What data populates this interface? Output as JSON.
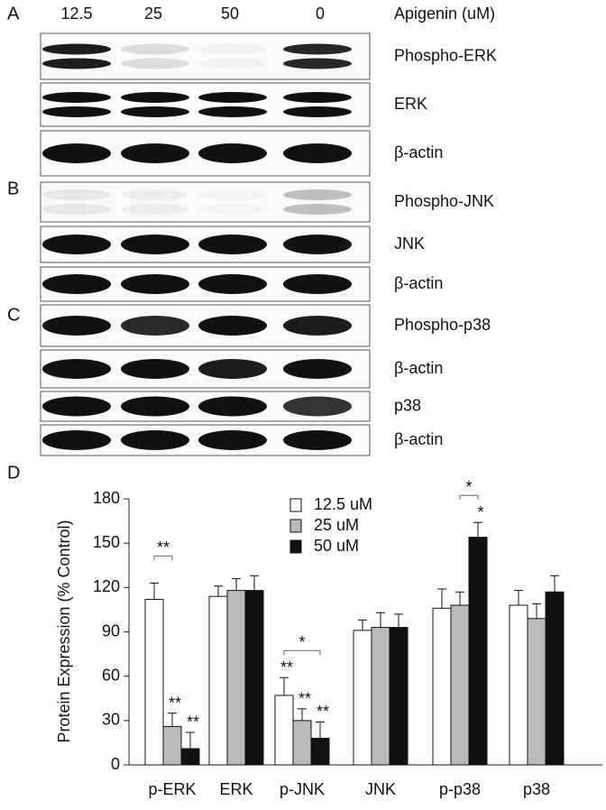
{
  "panels": [
    "A",
    "B",
    "C",
    "D"
  ],
  "blot": {
    "lanes": [
      "12.5",
      "25",
      "50",
      "0"
    ],
    "treatment": "Apigenin (uM)",
    "rows": [
      "Phospho-ERK",
      "ERK",
      "β-actin",
      "Phospho-JNK",
      "JNK",
      "β-actin",
      "Phospho-p38",
      "β-actin",
      "p38",
      "β-actin"
    ]
  },
  "chart_data": {
    "type": "bar",
    "ylabel": "Protein Expression (% Control)",
    "categories": [
      "p-ERK",
      "ERK",
      "p-JNK",
      "JNK",
      "p-p38",
      "p38"
    ],
    "series": [
      {
        "name": "12.5 uM",
        "color": "#ffffff",
        "values": [
          112,
          114,
          47,
          91,
          106,
          108
        ],
        "errors": [
          11,
          7,
          12,
          7,
          13,
          10
        ],
        "stars": [
          null,
          null,
          "**",
          null,
          null,
          null
        ]
      },
      {
        "name": "25 uM",
        "color": "#bbbbbb",
        "values": [
          26,
          118,
          30,
          93,
          108,
          99
        ],
        "errors": [
          9,
          8,
          8,
          10,
          9,
          10
        ],
        "stars": [
          "**",
          null,
          "**",
          null,
          null,
          null
        ]
      },
      {
        "name": "50 uM",
        "color": "#111111",
        "values": [
          11,
          118,
          18,
          93,
          154,
          117
        ],
        "errors": [
          11,
          10,
          11,
          9,
          10,
          11
        ],
        "stars": [
          "**",
          null,
          "**",
          null,
          "*",
          null
        ]
      }
    ],
    "brackets": [
      {
        "category": "p-ERK",
        "series": [
          "12.5 uM",
          "25 uM"
        ],
        "label": "**"
      },
      {
        "category": "p-JNK",
        "series": [
          "12.5 uM",
          "50 uM"
        ],
        "label": "*"
      },
      {
        "category": "p-p38",
        "series": [
          "25 uM",
          "50 uM"
        ],
        "label": "*"
      }
    ],
    "ylim": [
      0,
      180
    ],
    "yticks": [
      0,
      30,
      60,
      90,
      120,
      150,
      180
    ]
  }
}
